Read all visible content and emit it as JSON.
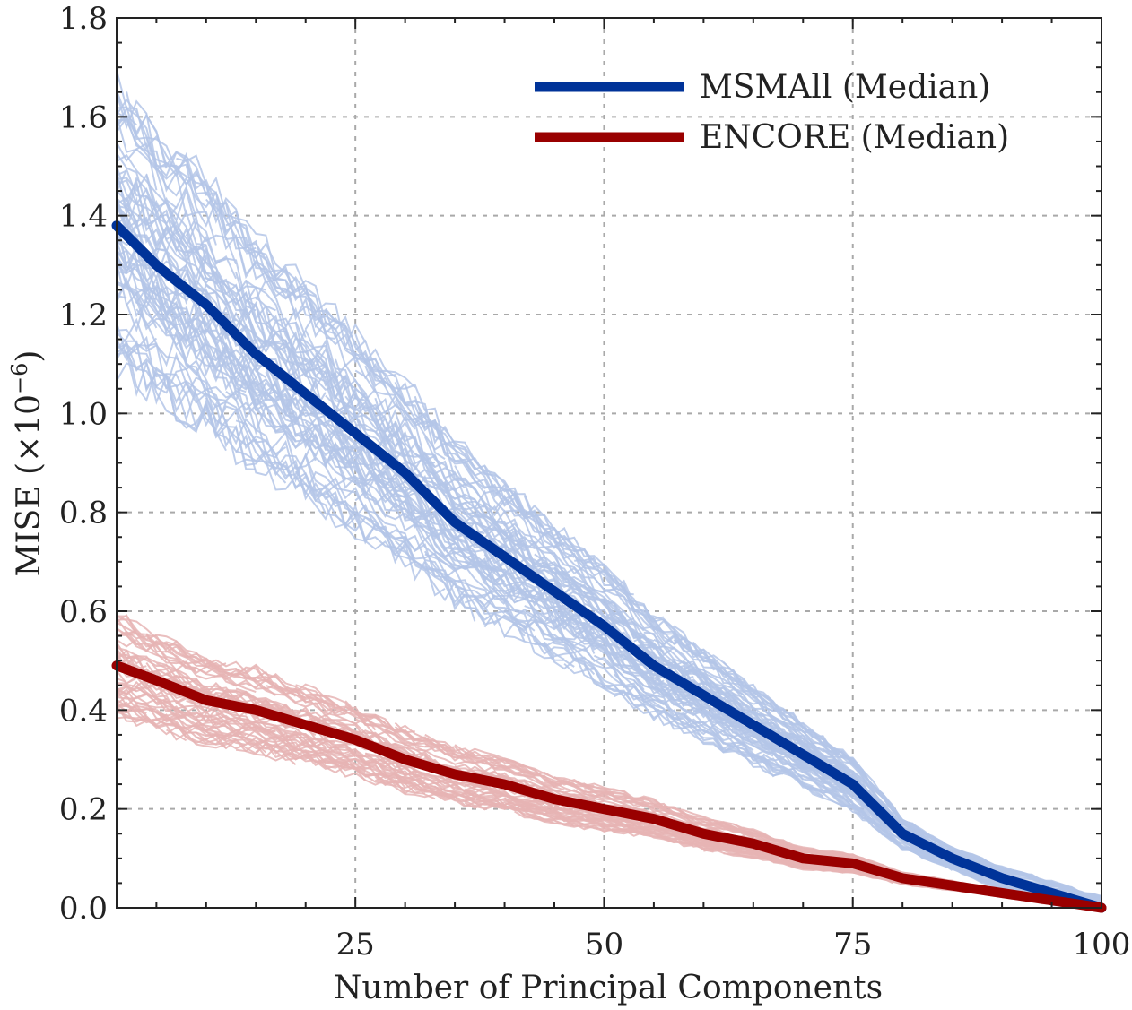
{
  "chart_data": {
    "type": "line",
    "title": "",
    "xlabel": "Number of Principal Components",
    "ylabel": "MISE (×10⁻⁶)",
    "ylabel_base": "MISE (×10",
    "ylabel_exp": "−6",
    "ylabel_close": ")",
    "xlim": [
      1,
      100
    ],
    "ylim": [
      0.0,
      1.8
    ],
    "xticks": [
      25,
      50,
      75,
      100
    ],
    "xtick_labels": [
      "25",
      "50",
      "75",
      "100"
    ],
    "yticks": [
      0.0,
      0.2,
      0.4,
      0.6,
      0.8,
      1.0,
      1.2,
      1.4,
      1.6,
      1.8
    ],
    "ytick_labels": [
      "0.0",
      "0.2",
      "0.4",
      "0.6",
      "0.8",
      "1.0",
      "1.2",
      "1.4",
      "1.6",
      "1.8"
    ],
    "grid": true,
    "legend_position": "top-right",
    "series": [
      {
        "name": "MSMAll (Median)",
        "color": "#003399",
        "x": [
          1,
          5,
          10,
          15,
          20,
          25,
          30,
          35,
          40,
          45,
          50,
          55,
          60,
          65,
          70,
          75,
          80,
          85,
          90,
          95,
          100
        ],
        "values": [
          1.38,
          1.3,
          1.22,
          1.12,
          1.04,
          0.96,
          0.88,
          0.78,
          0.71,
          0.64,
          0.57,
          0.49,
          0.43,
          0.37,
          0.31,
          0.25,
          0.15,
          0.1,
          0.06,
          0.03,
          0.0
        ]
      },
      {
        "name": "ENCORE (Median)",
        "color": "#990000",
        "x": [
          1,
          5,
          10,
          15,
          20,
          25,
          30,
          35,
          40,
          45,
          50,
          55,
          60,
          65,
          70,
          75,
          80,
          85,
          90,
          95,
          100
        ],
        "values": [
          0.49,
          0.46,
          0.42,
          0.4,
          0.37,
          0.34,
          0.3,
          0.27,
          0.25,
          0.22,
          0.2,
          0.18,
          0.15,
          0.13,
          0.1,
          0.09,
          0.06,
          0.045,
          0.03,
          0.015,
          0.0
        ]
      }
    ],
    "individual_subject_colors": {
      "MSMAll": "#b4c6e7",
      "ENCORE": "#e6b4b4"
    }
  }
}
